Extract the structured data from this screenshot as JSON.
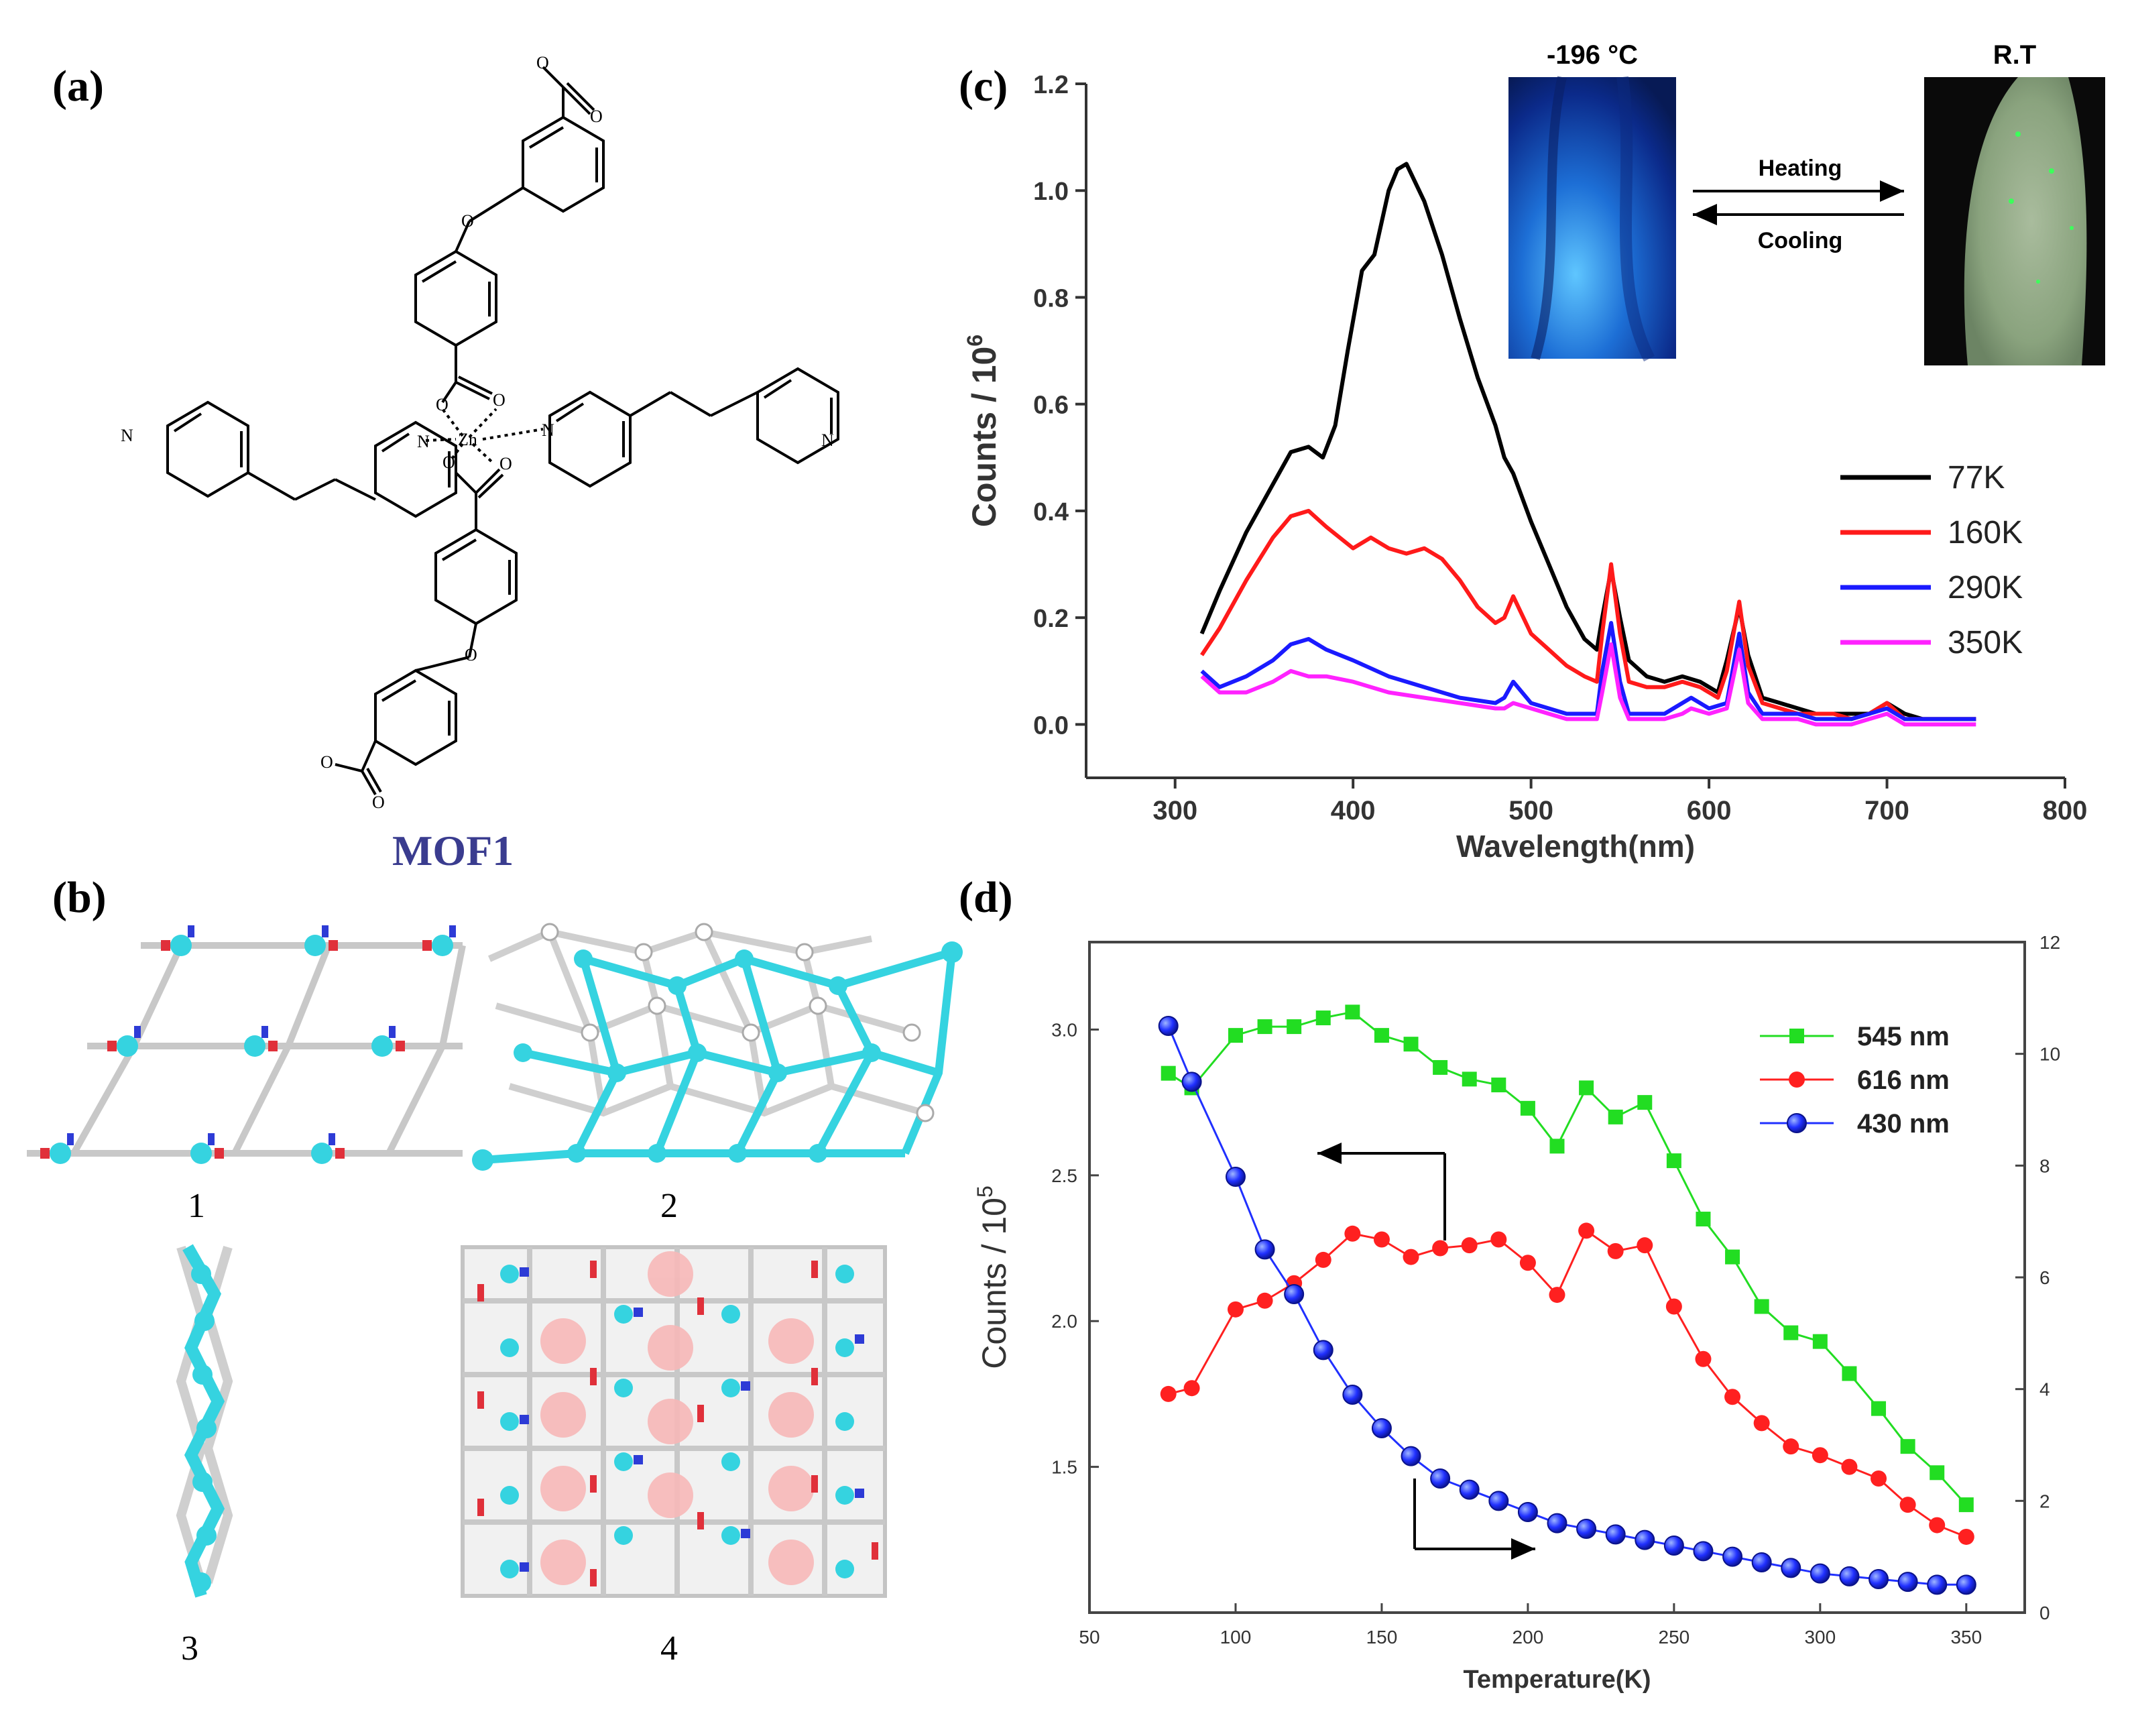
{
  "panels": {
    "a": {
      "label": "(a)",
      "caption": "MOF1",
      "caption_color": "#3a3c8f",
      "atoms": {
        "zn": "Zn",
        "n": "N",
        "o": "O"
      }
    },
    "b": {
      "label": "(b)",
      "sub_labels": [
        "1",
        "2",
        "3",
        "4"
      ]
    },
    "c": {
      "label": "(c)"
    },
    "d": {
      "label": "(d)"
    }
  },
  "inset_c": {
    "left_title": "-196 °C",
    "right_title": "R.T",
    "heating_label": "Heating",
    "cooling_label": "Cooling"
  },
  "colors": {
    "cyan": "#35d3e0",
    "red_atom": "#e0303a",
    "blue_atom": "#2d3bd6",
    "bond": "#d0d0d0",
    "black": "#000000",
    "red": "#ff1a1a",
    "blue": "#1a1aff",
    "magenta": "#ff22ff",
    "green": "#22dd22",
    "red_d": "#ff2020",
    "blue_d": "#2030ff"
  },
  "chart_data": [
    {
      "id": "c",
      "type": "line",
      "xlabel": "Wavelength(nm)",
      "ylabel": "Counts / 10",
      "ylabel_sup": "6",
      "xlim": [
        250,
        800
      ],
      "ylim": [
        -0.1,
        1.2
      ],
      "xticks": [
        300,
        400,
        500,
        600,
        700,
        800
      ],
      "yticks": [
        0.0,
        0.2,
        0.4,
        0.6,
        0.8,
        1.0,
        1.2
      ],
      "series": [
        {
          "name": "77K",
          "color": "#000000",
          "x": [
            315,
            325,
            340,
            355,
            365,
            375,
            383,
            390,
            397,
            405,
            412,
            420,
            425,
            430,
            440,
            450,
            460,
            470,
            480,
            485,
            490,
            500,
            510,
            520,
            530,
            537,
            540,
            545,
            550,
            555,
            565,
            575,
            585,
            595,
            605,
            610,
            617,
            622,
            630,
            640,
            650,
            660,
            670,
            680,
            690,
            700,
            710,
            720,
            735,
            750
          ],
          "y": [
            0.17,
            0.25,
            0.36,
            0.45,
            0.51,
            0.52,
            0.5,
            0.56,
            0.7,
            0.85,
            0.88,
            1.0,
            1.04,
            1.05,
            0.98,
            0.88,
            0.76,
            0.65,
            0.56,
            0.5,
            0.47,
            0.38,
            0.3,
            0.22,
            0.16,
            0.14,
            0.2,
            0.29,
            0.2,
            0.12,
            0.09,
            0.08,
            0.09,
            0.08,
            0.06,
            0.12,
            0.22,
            0.13,
            0.05,
            0.04,
            0.03,
            0.02,
            0.02,
            0.02,
            0.02,
            0.04,
            0.02,
            0.01,
            0.01,
            0.01
          ]
        },
        {
          "name": "160K",
          "color": "#ff1a1a",
          "x": [
            315,
            325,
            340,
            355,
            365,
            375,
            385,
            400,
            410,
            420,
            430,
            440,
            450,
            460,
            470,
            480,
            485,
            490,
            500,
            510,
            520,
            530,
            537,
            540,
            545,
            550,
            555,
            565,
            575,
            585,
            595,
            605,
            610,
            617,
            622,
            630,
            640,
            650,
            660,
            670,
            680,
            690,
            700,
            710,
            720,
            735,
            750
          ],
          "y": [
            0.13,
            0.18,
            0.27,
            0.35,
            0.39,
            0.4,
            0.37,
            0.33,
            0.35,
            0.33,
            0.32,
            0.33,
            0.31,
            0.27,
            0.22,
            0.19,
            0.2,
            0.24,
            0.17,
            0.14,
            0.11,
            0.09,
            0.08,
            0.17,
            0.3,
            0.17,
            0.08,
            0.07,
            0.07,
            0.08,
            0.07,
            0.05,
            0.1,
            0.23,
            0.11,
            0.04,
            0.03,
            0.02,
            0.02,
            0.02,
            0.01,
            0.02,
            0.04,
            0.01,
            0.01,
            0.01,
            0.01
          ]
        },
        {
          "name": "290K",
          "color": "#1a1aff",
          "x": [
            315,
            325,
            340,
            355,
            365,
            375,
            385,
            400,
            420,
            440,
            460,
            480,
            485,
            490,
            500,
            510,
            520,
            530,
            537,
            540,
            545,
            550,
            555,
            565,
            575,
            585,
            590,
            600,
            610,
            617,
            622,
            630,
            640,
            650,
            660,
            670,
            680,
            690,
            700,
            710,
            720,
            735,
            750
          ],
          "y": [
            0.1,
            0.07,
            0.09,
            0.12,
            0.15,
            0.16,
            0.14,
            0.12,
            0.09,
            0.07,
            0.05,
            0.04,
            0.05,
            0.08,
            0.04,
            0.03,
            0.02,
            0.02,
            0.02,
            0.1,
            0.19,
            0.08,
            0.02,
            0.02,
            0.02,
            0.04,
            0.05,
            0.03,
            0.04,
            0.17,
            0.06,
            0.02,
            0.02,
            0.02,
            0.01,
            0.01,
            0.01,
            0.02,
            0.03,
            0.01,
            0.01,
            0.01,
            0.01
          ]
        },
        {
          "name": "350K",
          "color": "#ff22ff",
          "x": [
            315,
            325,
            340,
            355,
            365,
            375,
            385,
            400,
            420,
            440,
            460,
            480,
            485,
            490,
            500,
            510,
            520,
            530,
            537,
            540,
            545,
            550,
            555,
            565,
            575,
            585,
            590,
            600,
            610,
            617,
            622,
            630,
            640,
            650,
            660,
            670,
            680,
            690,
            700,
            710,
            720,
            735,
            750
          ],
          "y": [
            0.09,
            0.06,
            0.06,
            0.08,
            0.1,
            0.09,
            0.09,
            0.08,
            0.06,
            0.05,
            0.04,
            0.03,
            0.03,
            0.04,
            0.03,
            0.02,
            0.01,
            0.01,
            0.01,
            0.06,
            0.15,
            0.05,
            0.01,
            0.01,
            0.01,
            0.02,
            0.03,
            0.02,
            0.03,
            0.14,
            0.04,
            0.01,
            0.01,
            0.01,
            0.0,
            0.0,
            0.0,
            0.01,
            0.02,
            0.0,
            0.0,
            0.0,
            0.0
          ]
        }
      ]
    },
    {
      "id": "d",
      "type": "line",
      "xlabel": "Temperature(K)",
      "ylabel": "Counts / 10",
      "ylabel_sup": "5",
      "xlim": [
        50,
        370
      ],
      "ylim": [
        1.0,
        3.3
      ],
      "ylim_right": [
        0,
        12
      ],
      "xticks": [
        50,
        100,
        150,
        200,
        250,
        300,
        350
      ],
      "yticks": [
        1.5,
        2.0,
        2.5,
        3.0
      ],
      "yticks_right": [
        0,
        2,
        4,
        6,
        8,
        10,
        12
      ],
      "series": [
        {
          "name": "545 nm",
          "color": "#22dd22",
          "marker": "square",
          "axis": "left",
          "x": [
            77,
            85,
            100,
            110,
            120,
            130,
            140,
            150,
            160,
            170,
            180,
            190,
            200,
            210,
            220,
            230,
            240,
            250,
            260,
            270,
            280,
            290,
            300,
            310,
            320,
            330,
            340,
            350
          ],
          "y": [
            2.85,
            2.8,
            2.98,
            3.01,
            3.01,
            3.04,
            3.06,
            2.98,
            2.95,
            2.87,
            2.83,
            2.81,
            2.73,
            2.6,
            2.8,
            2.7,
            2.75,
            2.55,
            2.35,
            2.22,
            2.05,
            1.96,
            1.93,
            1.82,
            1.7,
            1.57,
            1.48,
            1.37
          ]
        },
        {
          "name": "616 nm",
          "color": "#ff2020",
          "marker": "circle",
          "axis": "left",
          "x": [
            77,
            85,
            100,
            110,
            120,
            130,
            140,
            150,
            160,
            170,
            180,
            190,
            200,
            210,
            220,
            230,
            240,
            250,
            260,
            270,
            280,
            290,
            300,
            310,
            320,
            330,
            340,
            350
          ],
          "y": [
            1.75,
            1.77,
            2.04,
            2.07,
            2.13,
            2.21,
            2.3,
            2.28,
            2.22,
            2.25,
            2.26,
            2.28,
            2.2,
            2.09,
            2.31,
            2.24,
            2.26,
            2.05,
            1.87,
            1.74,
            1.65,
            1.57,
            1.54,
            1.5,
            1.46,
            1.37,
            1.3,
            1.26
          ]
        },
        {
          "name": "430 nm",
          "color": "#2030ff",
          "marker": "sphere",
          "axis": "right",
          "x": [
            77,
            85,
            100,
            110,
            120,
            130,
            140,
            150,
            160,
            170,
            180,
            190,
            200,
            210,
            220,
            230,
            240,
            250,
            260,
            270,
            280,
            290,
            300,
            310,
            320,
            330,
            340,
            350
          ],
          "y": [
            10.5,
            9.5,
            7.8,
            6.5,
            5.7,
            4.7,
            3.9,
            3.3,
            2.8,
            2.4,
            2.2,
            2.0,
            1.8,
            1.6,
            1.5,
            1.4,
            1.3,
            1.2,
            1.1,
            1.0,
            0.9,
            0.8,
            0.7,
            0.65,
            0.6,
            0.55,
            0.5,
            0.5
          ]
        }
      ]
    }
  ]
}
